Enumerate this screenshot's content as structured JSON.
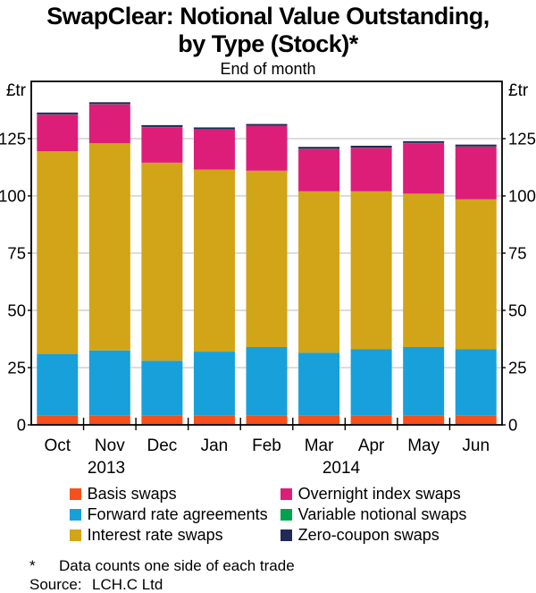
{
  "title": {
    "line1": "SwapClear: Notional Value Outstanding,",
    "line2": "by Type (Stock)*"
  },
  "subtitle": "End of month",
  "axis_unit_left": "£tr",
  "axis_unit_right": "£tr",
  "chart_data": {
    "type": "bar",
    "stacked": true,
    "title": "SwapClear: Notional Value Outstanding, by Type (Stock)*",
    "subtitle": "End of month",
    "ylabel": "£tr",
    "ylim": [
      0,
      150
    ],
    "yticks": [
      0,
      25,
      50,
      75,
      100,
      125
    ],
    "grid": true,
    "legend_position": "bottom",
    "categories": [
      "Oct",
      "Nov",
      "Dec",
      "Jan",
      "Feb",
      "Mar",
      "Apr",
      "May",
      "Jun"
    ],
    "year_labels": [
      "2013",
      "2014"
    ],
    "series": [
      {
        "name": "Basis swaps",
        "color": "#F4511E",
        "values": [
          4,
          4,
          4,
          4,
          4,
          4,
          4,
          4,
          4
        ]
      },
      {
        "name": "Forward rate agreements",
        "color": "#18A0DB",
        "values": [
          27,
          28.5,
          24,
          28,
          30,
          27.5,
          29,
          30,
          29
        ]
      },
      {
        "name": "Interest rate swaps",
        "color": "#D2A417",
        "values": [
          88.5,
          90.5,
          86.5,
          79.5,
          77,
          70.5,
          69,
          67,
          65.5
        ]
      },
      {
        "name": "Overnight index swaps",
        "color": "#DC1E78",
        "values": [
          16,
          17,
          15.5,
          17.5,
          19.5,
          18.5,
          19,
          22,
          23
        ]
      },
      {
        "name": "Variable notional swaps",
        "color": "#00A250",
        "values": [
          0.1,
          0.1,
          0.1,
          0.1,
          0.1,
          0.1,
          0.1,
          0.1,
          0.1
        ]
      },
      {
        "name": "Zero-coupon swaps",
        "color": "#1F2A56",
        "values": [
          0.8,
          0.8,
          0.8,
          0.8,
          0.8,
          0.8,
          0.8,
          0.8,
          0.8
        ]
      }
    ],
    "totals": [
      136.4,
      140.9,
      130.9,
      129.9,
      131.4,
      121.4,
      121.9,
      123.9,
      122.4
    ]
  },
  "footnote": {
    "marker": "*",
    "text": "Data counts one side of each trade"
  },
  "source": {
    "label": "Source:",
    "value": "LCH.C Ltd"
  }
}
